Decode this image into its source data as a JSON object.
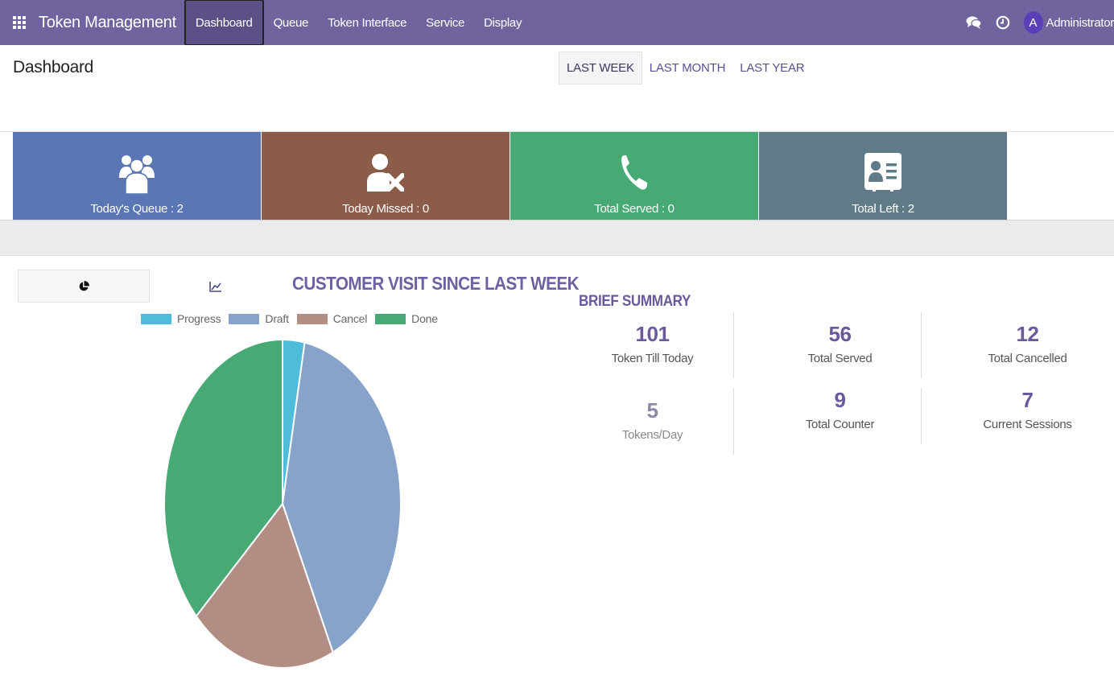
{
  "navbar": {
    "brand": "Token Management",
    "menu": [
      {
        "label": "Dashboard",
        "active": true
      },
      {
        "label": "Queue"
      },
      {
        "label": "Token Interface"
      },
      {
        "label": "Service"
      },
      {
        "label": "Display"
      }
    ],
    "avatar_letter": "A",
    "user": "Administrator",
    "icons": [
      "apps-grid-icon",
      "chat-icon",
      "clock-icon"
    ],
    "bg_color": "#71639e"
  },
  "control_panel": {
    "title": "Dashboard",
    "periods": [
      {
        "label": "LAST WEEK",
        "active": true
      },
      {
        "label": "LAST MONTH"
      },
      {
        "label": "LAST YEAR"
      }
    ]
  },
  "tiles": [
    {
      "label": "Today's Queue : 2",
      "icon": "users-group-icon",
      "color": "#5b76b4"
    },
    {
      "label": "Today Missed : 0",
      "icon": "user-times-icon",
      "color": "#8b5c4a"
    },
    {
      "label": "Total Served : 0",
      "icon": "phone-icon",
      "color": "#47aa75"
    },
    {
      "label": "Total Left : 2",
      "icon": "address-card-icon",
      "color": "#5f7b88"
    }
  ],
  "chart_tabs": [
    "pie-chart-icon",
    "line-chart-icon"
  ],
  "chart_data": {
    "type": "pie",
    "title": "CUSTOMER VISIT SINCE LAST WEEK",
    "categories": [
      "Progress",
      "Draft",
      "Cancel",
      "Done"
    ],
    "values": [
      3,
      40,
      20,
      37
    ],
    "colors": [
      "#4fbcdc",
      "#87a3c9",
      "#b18d83",
      "#47aa75"
    ],
    "legend": "top"
  },
  "summary": {
    "title": "BRIEF SUMMARY",
    "stats": [
      {
        "value": "101",
        "label": "Token Till Today"
      },
      {
        "value": "56",
        "label": "Total Served"
      },
      {
        "value": "12",
        "label": "Total Cancelled"
      },
      {
        "value": "5",
        "label": "Tokens/Day"
      },
      {
        "value": "9",
        "label": "Total Counter"
      },
      {
        "value": "7",
        "label": "Current Sessions"
      }
    ]
  }
}
